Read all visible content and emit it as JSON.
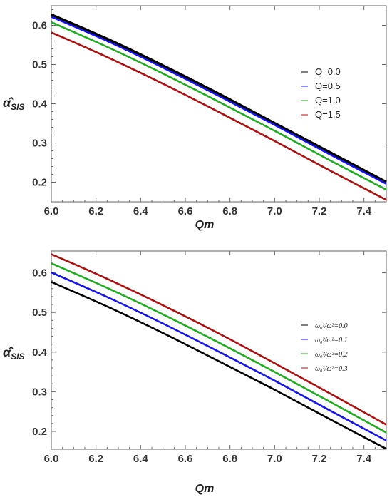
{
  "chart_data": [
    {
      "type": "line",
      "xlabel": "Qm",
      "ylabel": "α̂",
      "ylabel_sub": "SIS",
      "xlim": [
        6.0,
        7.5
      ],
      "ylim": [
        0.15,
        0.65
      ],
      "xticks": [
        "6.0",
        "6.2",
        "6.4",
        "6.6",
        "6.8",
        "7.0",
        "7.2",
        "7.4"
      ],
      "yticks": [
        "0.2",
        "0.3",
        "0.4",
        "0.5",
        "0.6"
      ],
      "grid": false,
      "legend_position": "right-middle",
      "x": [
        6.0,
        6.25,
        6.5,
        6.75,
        7.0,
        7.25,
        7.5
      ],
      "series": [
        {
          "name": "Q=0.0",
          "color": "#000000",
          "values": [
            0.627,
            0.565,
            0.497,
            0.425,
            0.35,
            0.275,
            0.2
          ]
        },
        {
          "name": "Q=0.5",
          "color": "#1515e6",
          "values": [
            0.622,
            0.56,
            0.492,
            0.42,
            0.346,
            0.27,
            0.196
          ]
        },
        {
          "name": "Q=1.0",
          "color": "#22aa22",
          "values": [
            0.608,
            0.545,
            0.477,
            0.405,
            0.331,
            0.255,
            0.181
          ]
        },
        {
          "name": "Q=1.5",
          "color": "#aa1111",
          "values": [
            0.582,
            0.519,
            0.451,
            0.379,
            0.305,
            0.229,
            0.155
          ]
        }
      ]
    },
    {
      "type": "line",
      "xlabel": "Qm",
      "ylabel": "α̂",
      "ylabel_sub": "SIS",
      "xlim": [
        6.0,
        7.5
      ],
      "ylim": [
        0.155,
        0.655
      ],
      "xticks": [
        "6.0",
        "6.2",
        "6.4",
        "6.6",
        "6.8",
        "7.0",
        "7.2",
        "7.4"
      ],
      "yticks": [
        "0.2",
        "0.3",
        "0.4",
        "0.5",
        "0.6"
      ],
      "grid": false,
      "legend_position": "right-middle",
      "x": [
        6.0,
        6.25,
        6.5,
        6.75,
        7.0,
        7.25,
        7.5
      ],
      "series": [
        {
          "name": "ω₀²/ω²=0.0",
          "color": "#000000",
          "values": [
            0.577,
            0.515,
            0.448,
            0.377,
            0.305,
            0.23,
            0.156
          ]
        },
        {
          "name": "ω₀²/ω²=0.1",
          "color": "#1515e6",
          "values": [
            0.601,
            0.539,
            0.472,
            0.401,
            0.328,
            0.252,
            0.177
          ]
        },
        {
          "name": "ω₀²/ω²=0.2",
          "color": "#22aa22",
          "values": [
            0.624,
            0.562,
            0.495,
            0.424,
            0.35,
            0.274,
            0.197
          ]
        },
        {
          "name": "ω₀²/ω²=0.3",
          "color": "#aa1111",
          "values": [
            0.647,
            0.585,
            0.518,
            0.447,
            0.372,
            0.295,
            0.217
          ]
        }
      ]
    }
  ]
}
